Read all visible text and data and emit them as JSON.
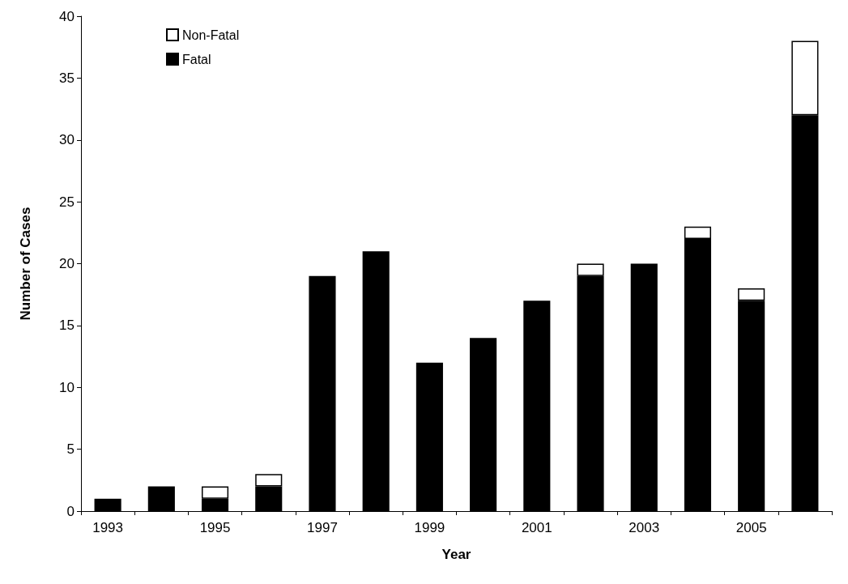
{
  "chart_data": {
    "type": "bar",
    "stacked": true,
    "xlabel": "Year",
    "ylabel": "Number of Cases",
    "categories": [
      "1993",
      null,
      "1995",
      null,
      "1997",
      null,
      "1999",
      null,
      "2001",
      null,
      "2003",
      null,
      "2005",
      null
    ],
    "series": [
      {
        "name": "Fatal",
        "color": "#000000",
        "values": [
          1,
          2,
          1,
          2,
          19,
          21,
          12,
          14,
          17,
          19,
          20,
          22,
          17,
          32
        ]
      },
      {
        "name": "Non-Fatal",
        "color": "#ffffff",
        "values": [
          null,
          null,
          1,
          1,
          null,
          null,
          null,
          null,
          null,
          1,
          null,
          1,
          1,
          6
        ]
      }
    ],
    "ylim": [
      0,
      40
    ],
    "yticks": [
      0,
      5,
      10,
      15,
      20,
      25,
      30,
      35,
      40
    ],
    "grid": false,
    "legend": "top left"
  }
}
